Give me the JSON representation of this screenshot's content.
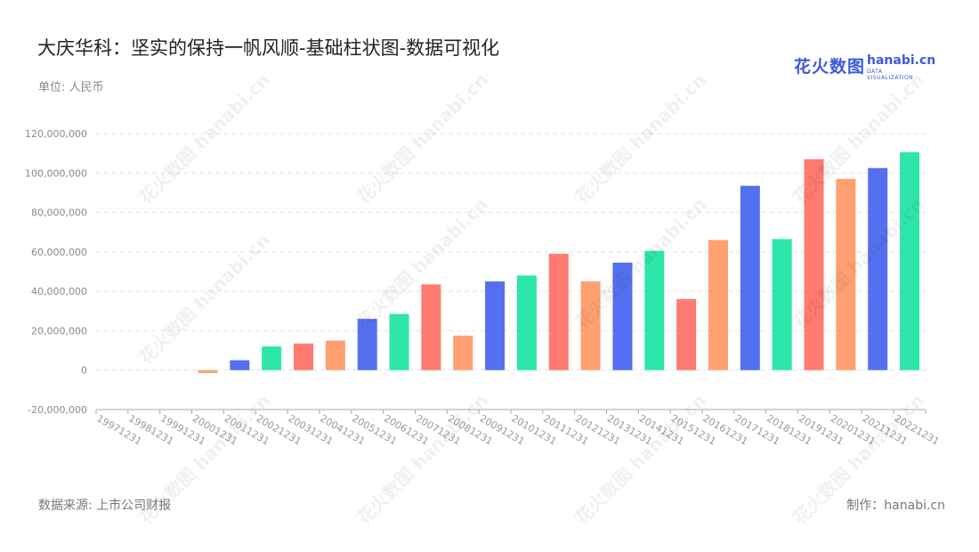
{
  "header": {
    "title": "大庆华科：坚实的保持一帆风顺-基础柱状图-数据可视化",
    "unit": "单位: 人民币"
  },
  "logo": {
    "cn": "花火数图",
    "en": "hanabi.cn",
    "sub": "DATA VISUALIZATION"
  },
  "watermark_text": "花火数图 hanabi.cn",
  "footer": {
    "source": "数据来源: 上市公司财报",
    "maker": "制作：hanabi.cn"
  },
  "colors": [
    "#5470f0",
    "#2de6ab",
    "#ff7a70",
    "#ffa070"
  ],
  "chart_data": {
    "type": "bar",
    "title": "大庆华科：坚实的保持一帆风顺-基础柱状图-数据可视化",
    "ylabel": "单位: 人民币",
    "ylim": [
      -20000000,
      120000000
    ],
    "yticks": [
      {
        "value": -20000000,
        "label": "-20,000,000"
      },
      {
        "value": 0,
        "label": "0"
      },
      {
        "value": 20000000,
        "label": "20,000,000"
      },
      {
        "value": 40000000,
        "label": "40,000,000"
      },
      {
        "value": 60000000,
        "label": "60,000,000"
      },
      {
        "value": 80000000,
        "label": "80,000,000"
      },
      {
        "value": 100000000,
        "label": "100,000,000"
      },
      {
        "value": 120000000,
        "label": "120,000,000"
      }
    ],
    "grid": true,
    "categories": [
      "19971231",
      "19981231",
      "19991231",
      "20001231",
      "20011231",
      "20021231",
      "20031231",
      "20041231",
      "20051231",
      "20061231",
      "20071231",
      "20081231",
      "20091231",
      "20101231",
      "20111231",
      "20121231",
      "20131231",
      "20141231",
      "20151231",
      "20161231",
      "20171231",
      "20181231",
      "20191231",
      "20201231",
      "20211231",
      "20221231"
    ],
    "values": [
      0,
      0,
      0,
      -1500000,
      5000000,
      12000000,
      13500000,
      15000000,
      26000000,
      28500000,
      43500000,
      17500000,
      45000000,
      48000000,
      59000000,
      45000000,
      54500000,
      60500000,
      36000000,
      66000000,
      93500000,
      66500000,
      107000000,
      97000000,
      102500000,
      110500000
    ]
  }
}
